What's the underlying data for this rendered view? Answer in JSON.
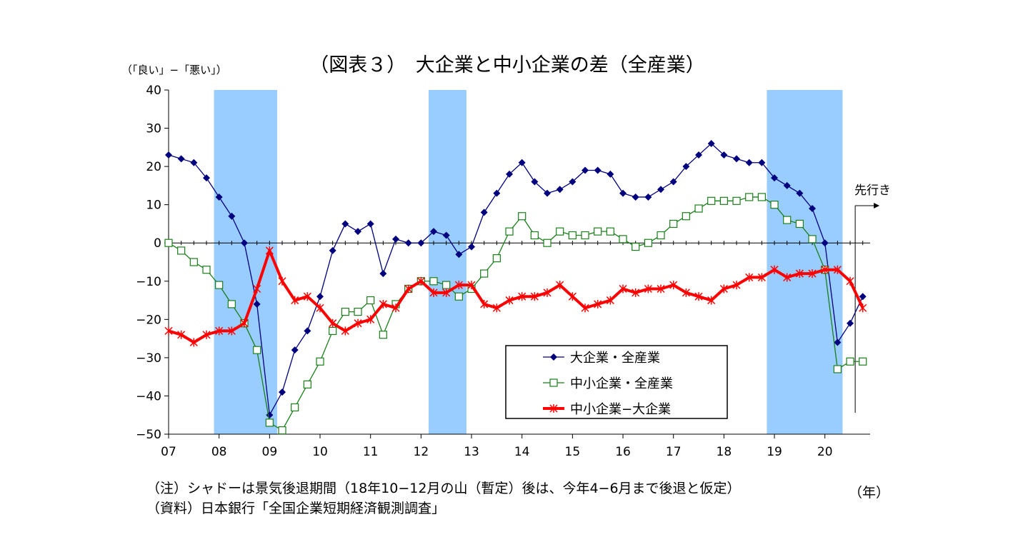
{
  "chart_data": {
    "type": "line",
    "title": "（図表３）　大企業と中小企業の差（全産業）",
    "ylabel": "（「良い」−「悪い」）",
    "xlabel": "（年）",
    "ylim": [
      -50,
      40
    ],
    "yticks": [
      40,
      30,
      20,
      10,
      0,
      -10,
      -20,
      -30,
      -40,
      -50
    ],
    "ytick_labels": [
      "40",
      "30",
      "20",
      "10",
      "0",
      "−10",
      "−20",
      "−30",
      "−40",
      "−50"
    ],
    "xlim": [
      2007.0,
      2020.95
    ],
    "xticks": [
      2007,
      2008,
      2009,
      2010,
      2011,
      2012,
      2013,
      2014,
      2015,
      2016,
      2017,
      2018,
      2019,
      2020
    ],
    "xtick_labels": [
      "07",
      "08",
      "09",
      "10",
      "11",
      "12",
      "13",
      "14",
      "15",
      "16",
      "17",
      "18",
      "19",
      "20"
    ],
    "recession_shading": [
      {
        "start": 2007.9,
        "end": 2009.15
      },
      {
        "start": 2012.15,
        "end": 2012.9
      },
      {
        "start": 2018.85,
        "end": 2020.35
      }
    ],
    "forecast_label": "先行き",
    "forecast_x": 2020.6,
    "legend_position": "bottom-right",
    "series": [
      {
        "name": "大企業・全産業",
        "color": "#00007f",
        "marker": "diamond",
        "x": [
          2007.0,
          2007.25,
          2007.5,
          2007.75,
          2008.0,
          2008.25,
          2008.5,
          2008.75,
          2009.0,
          2009.25,
          2009.5,
          2009.75,
          2010.0,
          2010.25,
          2010.5,
          2010.75,
          2011.0,
          2011.25,
          2011.5,
          2011.75,
          2012.0,
          2012.25,
          2012.5,
          2012.75,
          2013.0,
          2013.25,
          2013.5,
          2013.75,
          2014.0,
          2014.25,
          2014.5,
          2014.75,
          2015.0,
          2015.25,
          2015.5,
          2015.75,
          2016.0,
          2016.25,
          2016.5,
          2016.75,
          2017.0,
          2017.25,
          2017.5,
          2017.75,
          2018.0,
          2018.25,
          2018.5,
          2018.75,
          2019.0,
          2019.25,
          2019.5,
          2019.75,
          2020.0,
          2020.25,
          2020.5,
          2020.75
        ],
        "y": [
          23,
          22,
          21,
          17,
          12,
          7,
          0,
          -16,
          -45,
          -39,
          -28,
          -23,
          -14,
          -2,
          5,
          3,
          5,
          -8,
          1,
          0,
          0,
          3,
          2,
          -3,
          -1,
          8,
          13,
          18,
          21,
          16,
          13,
          14,
          16,
          19,
          19,
          18,
          13,
          12,
          12,
          14,
          16,
          20,
          23,
          26,
          23,
          22,
          21,
          21,
          17,
          15,
          13,
          9,
          0,
          -26,
          -21,
          -14
        ]
      },
      {
        "name": "中小企業・全産業",
        "color": "#1a7f1a",
        "marker": "square",
        "x": [
          2007.0,
          2007.25,
          2007.5,
          2007.75,
          2008.0,
          2008.25,
          2008.5,
          2008.75,
          2009.0,
          2009.25,
          2009.5,
          2009.75,
          2010.0,
          2010.25,
          2010.5,
          2010.75,
          2011.0,
          2011.25,
          2011.5,
          2011.75,
          2012.0,
          2012.25,
          2012.5,
          2012.75,
          2013.0,
          2013.25,
          2013.5,
          2013.75,
          2014.0,
          2014.25,
          2014.5,
          2014.75,
          2015.0,
          2015.25,
          2015.5,
          2015.75,
          2016.0,
          2016.25,
          2016.5,
          2016.75,
          2017.0,
          2017.25,
          2017.5,
          2017.75,
          2018.0,
          2018.25,
          2018.5,
          2018.75,
          2019.0,
          2019.25,
          2019.5,
          2019.75,
          2020.0,
          2020.25,
          2020.5,
          2020.75
        ],
        "y": [
          0,
          -2,
          -5,
          -7,
          -11,
          -16,
          -21,
          -28,
          -47,
          -49,
          -43,
          -37,
          -31,
          -23,
          -18,
          -18,
          -15,
          -24,
          -16,
          -12,
          -10,
          -10,
          -11,
          -14,
          -12,
          -8,
          -4,
          3,
          7,
          2,
          0,
          3,
          2,
          2,
          3,
          3,
          1,
          -1,
          0,
          2,
          5,
          7,
          9,
          11,
          11,
          11,
          12,
          12,
          10,
          6,
          5,
          1,
          -7,
          -33,
          -31,
          -31
        ]
      },
      {
        "name": "中小企業−大企業",
        "color": "#ff0000",
        "marker": "star",
        "x": [
          2007.0,
          2007.25,
          2007.5,
          2007.75,
          2008.0,
          2008.25,
          2008.5,
          2008.75,
          2009.0,
          2009.25,
          2009.5,
          2009.75,
          2010.0,
          2010.25,
          2010.5,
          2010.75,
          2011.0,
          2011.25,
          2011.5,
          2011.75,
          2012.0,
          2012.25,
          2012.5,
          2012.75,
          2013.0,
          2013.25,
          2013.5,
          2013.75,
          2014.0,
          2014.25,
          2014.5,
          2014.75,
          2015.0,
          2015.25,
          2015.5,
          2015.75,
          2016.0,
          2016.25,
          2016.5,
          2016.75,
          2017.0,
          2017.25,
          2017.5,
          2017.75,
          2018.0,
          2018.25,
          2018.5,
          2018.75,
          2019.0,
          2019.25,
          2019.5,
          2019.75,
          2020.0,
          2020.25,
          2020.5,
          2020.75
        ],
        "y": [
          -23,
          -24,
          -26,
          -24,
          -23,
          -23,
          -21,
          -12,
          -2,
          -10,
          -15,
          -14,
          -17,
          -21,
          -23,
          -21,
          -20,
          -16,
          -17,
          -12,
          -10,
          -13,
          -13,
          -11,
          -11,
          -16,
          -17,
          -15,
          -14,
          -14,
          -13,
          -11,
          -14,
          -17,
          -16,
          -15,
          -12,
          -13,
          -12,
          -12,
          -11,
          -13,
          -14,
          -15,
          -12,
          -11,
          -9,
          -9,
          -7,
          -9,
          -8,
          -8,
          -7,
          -7,
          -10,
          -17
        ]
      }
    ]
  },
  "notes": [
    "（注）シャドーは景気後退期間（18年10−12月の山（暫定）後は、今年4−6月まで後退と仮定）",
    "（資料）日本銀行「全国企業短期経済観測調査」"
  ]
}
